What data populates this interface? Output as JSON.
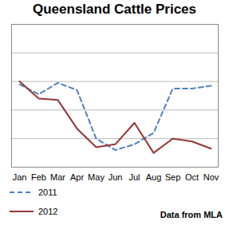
{
  "chart_data": {
    "type": "line",
    "title": "Queensland Cattle Prices",
    "annotation": "Data from MLA",
    "categories": [
      "Jan",
      "Feb",
      "Mar",
      "Apr",
      "May",
      "Jun",
      "Jul",
      "Aug",
      "Sep",
      "Oct",
      "Nov"
    ],
    "series": [
      {
        "name": "2011",
        "color": "#4f81bd",
        "line_style": "dashed",
        "values": [
          2.9,
          2.55,
          2.95,
          2.7,
          1.0,
          0.6,
          0.8,
          1.2,
          2.75,
          2.75,
          2.85
        ]
      },
      {
        "name": "2012",
        "color": "#943634",
        "line_style": "solid",
        "values": [
          3.0,
          2.4,
          2.35,
          1.35,
          0.7,
          0.8,
          1.55,
          0.5,
          1.0,
          0.9,
          0.65
        ]
      }
    ],
    "ylim": [
      0,
      5
    ],
    "yticks": [
      0,
      1,
      2,
      3,
      4,
      5
    ],
    "grid": true,
    "tick_labels": "x",
    "legend": "bottom-left"
  }
}
